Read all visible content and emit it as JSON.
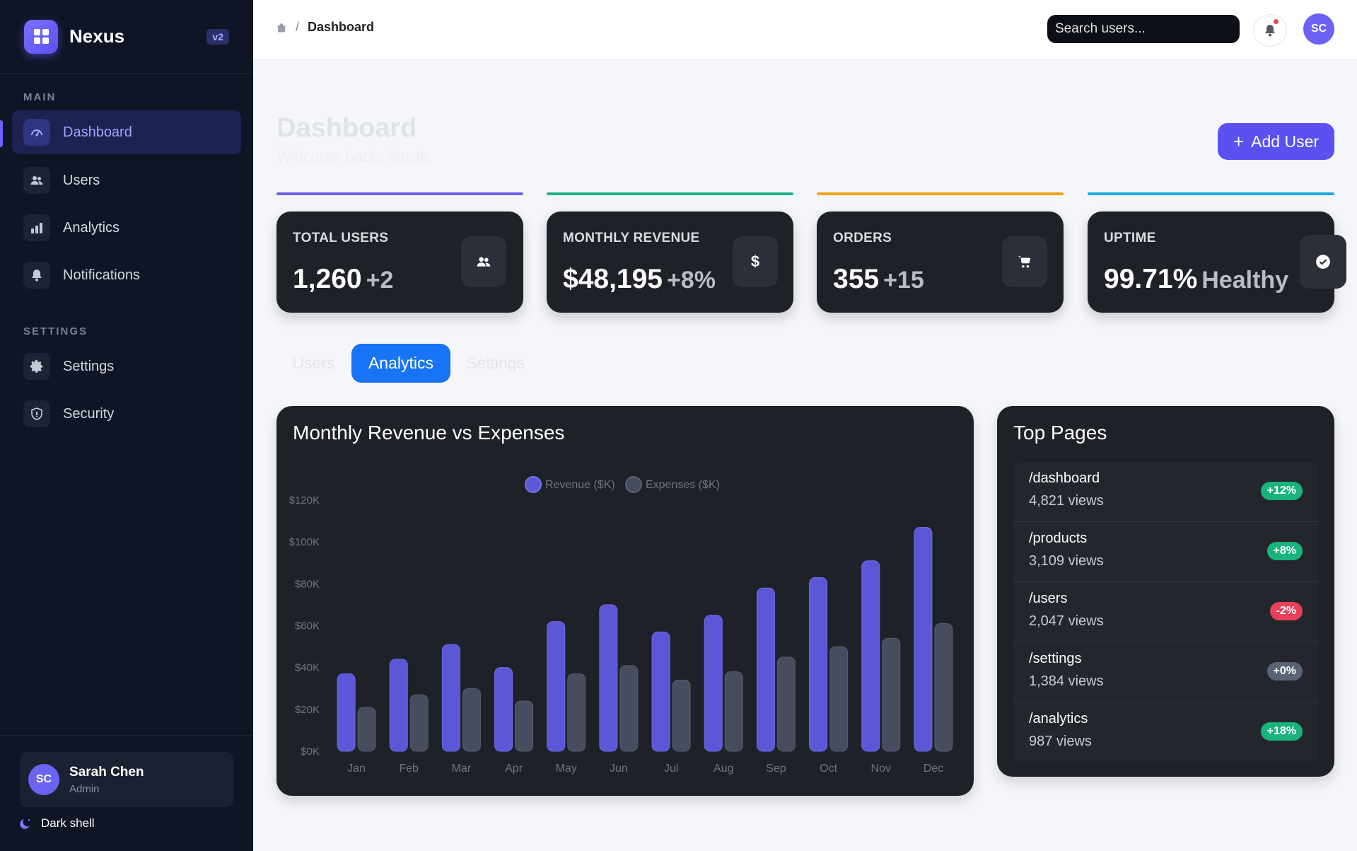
{
  "brand": {
    "name": "Nexus",
    "version": "v2"
  },
  "sidebar": {
    "sections": [
      {
        "label": "MAIN",
        "items": [
          {
            "label": "Dashboard",
            "icon": "gauge-icon",
            "active": true
          },
          {
            "label": "Users",
            "icon": "users-icon"
          },
          {
            "label": "Analytics",
            "icon": "bar-chart-icon"
          },
          {
            "label": "Notifications",
            "icon": "bell-icon"
          }
        ]
      },
      {
        "label": "SETTINGS",
        "items": [
          {
            "label": "Settings",
            "icon": "gear-icon"
          },
          {
            "label": "Security",
            "icon": "shield-icon"
          }
        ]
      }
    ],
    "user": {
      "initials": "SC",
      "name": "Sarah Chen",
      "role": "Admin"
    },
    "theme_toggle": "Dark shell"
  },
  "topbar": {
    "breadcrumb": "Dashboard",
    "search_placeholder": "Search users...",
    "avatar_initials": "SC"
  },
  "page": {
    "title": "Dashboard",
    "subtitle": "Welcome back, Sarah.",
    "add_button": "Add User"
  },
  "stats": [
    {
      "label": "TOTAL USERS",
      "value": "1,260",
      "delta": "+2",
      "icon": "users-icon",
      "accent": "#6a63e8"
    },
    {
      "label": "MONTHLY REVENUE",
      "value": "$48,195",
      "delta": "+8%",
      "icon": "dollar-icon",
      "accent": "#1fb38a"
    },
    {
      "label": "ORDERS",
      "value": "355",
      "delta": "+15",
      "icon": "cart-icon",
      "accent": "#f0a21c"
    },
    {
      "label": "UPTIME",
      "value": "99.71%",
      "delta": "Healthy",
      "icon": "check-circle-icon",
      "accent": "#1ea8e0"
    }
  ],
  "tabs": [
    {
      "label": "Users"
    },
    {
      "label": "Analytics",
      "active": true
    },
    {
      "label": "Settings"
    }
  ],
  "chart_data": {
    "type": "bar",
    "title": "Monthly Revenue vs Expenses",
    "categories": [
      "Jan",
      "Feb",
      "Mar",
      "Apr",
      "May",
      "Jun",
      "Jul",
      "Aug",
      "Sep",
      "Oct",
      "Nov",
      "Dec"
    ],
    "series": [
      {
        "name": "Revenue ($K)",
        "color": "#5b57d6",
        "values": [
          37,
          44,
          51,
          40,
          62,
          70,
          57,
          65,
          78,
          83,
          91,
          107
        ]
      },
      {
        "name": "Expenses ($K)",
        "color": "#474d5e",
        "values": [
          21,
          27,
          30,
          24,
          37,
          41,
          34,
          38,
          45,
          50,
          54,
          61
        ]
      }
    ],
    "yticks": [
      "$0K",
      "$20K",
      "$40K",
      "$60K",
      "$80K",
      "$100K",
      "$120K"
    ],
    "ylim": [
      0,
      120
    ],
    "legend": "top-center",
    "grid": false
  },
  "top_pages": {
    "title": "Top Pages",
    "rows": [
      {
        "path": "/dashboard",
        "views": "4,821 views",
        "change": "+12%",
        "color": "#19b37d"
      },
      {
        "path": "/products",
        "views": "3,109 views",
        "change": "+8%",
        "color": "#19b37d"
      },
      {
        "path": "/users",
        "views": "2,047 views",
        "change": "-2%",
        "color": "#e8405a"
      },
      {
        "path": "/settings",
        "views": "1,384 views",
        "change": "+0%",
        "color": "#5a6275"
      },
      {
        "path": "/analytics",
        "views": "987 views",
        "change": "+18%",
        "color": "#19b37d"
      }
    ]
  }
}
